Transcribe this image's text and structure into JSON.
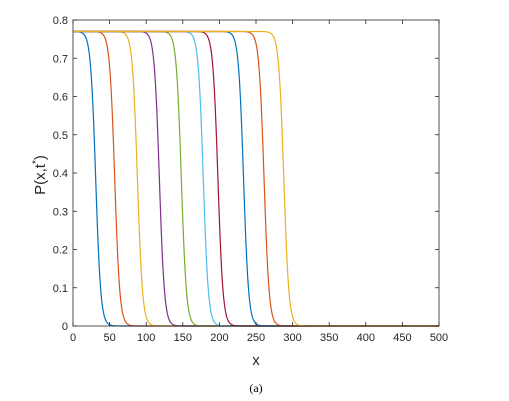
{
  "chart_data": {
    "type": "line",
    "title": "",
    "xlabel": "x",
    "ylabel": "P(x,t",
    "ylabel_superscript": "*",
    "ylabel_suffix": ")",
    "caption": "(a)",
    "xlim": [
      0,
      500
    ],
    "ylim": [
      0,
      0.8
    ],
    "x_ticks": [
      0,
      50,
      100,
      150,
      200,
      250,
      300,
      350,
      400,
      450,
      500
    ],
    "y_ticks": [
      0,
      0.1,
      0.2,
      0.3,
      0.4,
      0.5,
      0.6,
      0.7,
      0.8
    ],
    "x_tick_labels": [
      "0",
      "50",
      "100",
      "150",
      "200",
      "250",
      "300",
      "350",
      "400",
      "450",
      "500"
    ],
    "y_tick_labels": [
      "0",
      "0.1",
      "0.2",
      "0.3",
      "0.4",
      "0.5",
      "0.6",
      "0.7",
      "0.8"
    ],
    "grid": false,
    "box": true,
    "plateau": 0.77,
    "front_width": 3.5,
    "series": [
      {
        "front_x": 31,
        "color": "#0072BD"
      },
      {
        "front_x": 57,
        "color": "#D95319"
      },
      {
        "front_x": 88,
        "color": "#EDB120"
      },
      {
        "front_x": 118,
        "color": "#7E2F8E"
      },
      {
        "front_x": 148,
        "color": "#77AC30"
      },
      {
        "front_x": 178,
        "color": "#4DBEEE"
      },
      {
        "front_x": 198,
        "color": "#A2142F"
      },
      {
        "front_x": 233,
        "color": "#0072BD"
      },
      {
        "front_x": 261,
        "color": "#D95319"
      },
      {
        "front_x": 288,
        "color": "#EDB120"
      }
    ]
  }
}
